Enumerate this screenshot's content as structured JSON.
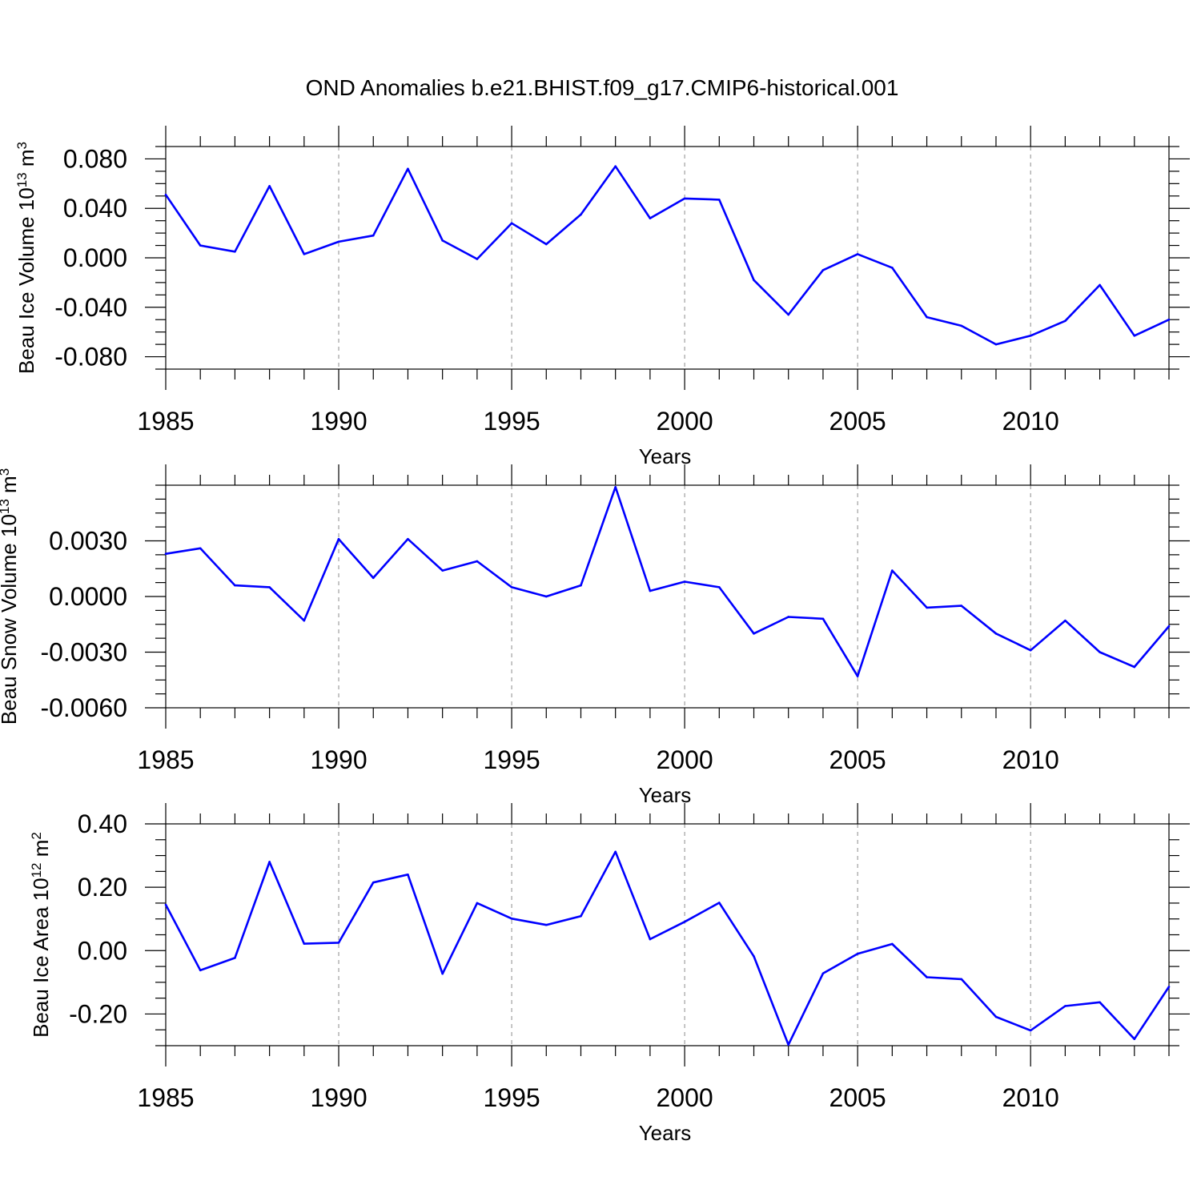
{
  "title": "OND Anomalies b.e21.BHIST.f09_g17.CMIP6-historical.001",
  "colors": {
    "line": "#0000ff",
    "axis": "#000000",
    "grid": "#8c8c8c"
  },
  "chart_data": [
    {
      "type": "line",
      "ylabel": {
        "text": "Beau Ice Volume 10",
        "exp": "13",
        "unit": " m",
        "unit_exp": "3"
      },
      "xlabel": "Years",
      "xlim": [
        1985,
        2014
      ],
      "ylim": [
        -0.09,
        0.09
      ],
      "yticks": [
        -0.08,
        -0.04,
        0.0,
        0.04,
        0.08
      ],
      "yticklabels": [
        "-0.080",
        "-0.040",
        "0.000",
        "0.040",
        "0.080"
      ],
      "xticks": [
        1985,
        1990,
        1995,
        2000,
        2005,
        2010
      ],
      "xticklabels": [
        "1985",
        "1990",
        "1995",
        "2000",
        "2005",
        "2010"
      ],
      "grid_x": [
        1990,
        1995,
        2000,
        2005,
        2010
      ],
      "x": [
        1985,
        1986,
        1987,
        1988,
        1989,
        1990,
        1991,
        1992,
        1993,
        1994,
        1995,
        1996,
        1997,
        1998,
        1999,
        2000,
        2001,
        2002,
        2003,
        2004,
        2005,
        2006,
        2007,
        2008,
        2009,
        2010,
        2011,
        2012,
        2013,
        2014
      ],
      "values": [
        0.051,
        0.01,
        0.005,
        0.058,
        0.003,
        0.013,
        0.018,
        0.072,
        0.014,
        -0.001,
        0.028,
        0.011,
        0.035,
        0.074,
        0.032,
        0.048,
        0.047,
        -0.018,
        -0.046,
        -0.01,
        0.003,
        -0.008,
        -0.048,
        -0.055,
        -0.07,
        -0.063,
        -0.051,
        -0.022,
        -0.063,
        -0.05
      ]
    },
    {
      "type": "line",
      "ylabel": {
        "text": "Beau Snow Volume 10",
        "exp": "13",
        "unit": " m",
        "unit_exp": "3"
      },
      "xlabel": "Years",
      "xlim": [
        1985,
        2014
      ],
      "ylim": [
        -0.006,
        0.006
      ],
      "yticks": [
        -0.006,
        -0.003,
        0.0,
        0.003
      ],
      "yticklabels": [
        "-0.0060",
        "-0.0030",
        "0.0000",
        "0.0030"
      ],
      "xticks": [
        1985,
        1990,
        1995,
        2000,
        2005,
        2010
      ],
      "xticklabels": [
        "1985",
        "1990",
        "1995",
        "2000",
        "2005",
        "2010"
      ],
      "grid_x": [
        1990,
        1995,
        2000,
        2005,
        2010
      ],
      "x": [
        1985,
        1986,
        1987,
        1988,
        1989,
        1990,
        1991,
        1992,
        1993,
        1994,
        1995,
        1996,
        1997,
        1998,
        1999,
        2000,
        2001,
        2002,
        2003,
        2004,
        2005,
        2006,
        2007,
        2008,
        2009,
        2010,
        2011,
        2012,
        2013,
        2014
      ],
      "values": [
        0.0023,
        0.0026,
        0.0006,
        0.0005,
        -0.0013,
        0.0031,
        0.001,
        0.0031,
        0.0014,
        0.0019,
        0.0005,
        0.0,
        0.0006,
        0.0059,
        0.0003,
        0.0008,
        0.0005,
        -0.002,
        -0.0011,
        -0.0012,
        -0.0043,
        0.0014,
        -0.0006,
        -0.0005,
        -0.002,
        -0.0029,
        -0.0013,
        -0.003,
        -0.0038,
        -0.0016
      ]
    },
    {
      "type": "line",
      "ylabel": {
        "text": "Beau Ice Area 10",
        "exp": "12",
        "unit": " m",
        "unit_exp": "2"
      },
      "xlabel": "Years",
      "xlim": [
        1985,
        2014
      ],
      "ylim": [
        -0.3,
        0.4
      ],
      "yticks": [
        -0.2,
        0.0,
        0.2,
        0.4
      ],
      "yticklabels": [
        "-0.20",
        "0.00",
        "0.20",
        "0.40"
      ],
      "xticks": [
        1985,
        1990,
        1995,
        2000,
        2005,
        2010
      ],
      "xticklabels": [
        "1985",
        "1990",
        "1995",
        "2000",
        "2005",
        "2010"
      ],
      "grid_x": [
        1990,
        1995,
        2000,
        2005,
        2010
      ],
      "x": [
        1985,
        1986,
        1987,
        1988,
        1989,
        1990,
        1991,
        1992,
        1993,
        1994,
        1995,
        1996,
        1997,
        1998,
        1999,
        2000,
        2001,
        2002,
        2003,
        2004,
        2005,
        2006,
        2007,
        2008,
        2009,
        2010,
        2011,
        2012,
        2013,
        2014
      ],
      "values": [
        0.145,
        -0.062,
        -0.023,
        0.28,
        0.022,
        0.025,
        0.215,
        0.24,
        -0.073,
        0.15,
        0.101,
        0.081,
        0.109,
        0.312,
        0.036,
        0.091,
        0.151,
        -0.018,
        -0.297,
        -0.072,
        -0.01,
        0.021,
        -0.084,
        -0.09,
        -0.209,
        -0.252,
        -0.175,
        -0.163,
        -0.279,
        -0.114
      ]
    }
  ]
}
